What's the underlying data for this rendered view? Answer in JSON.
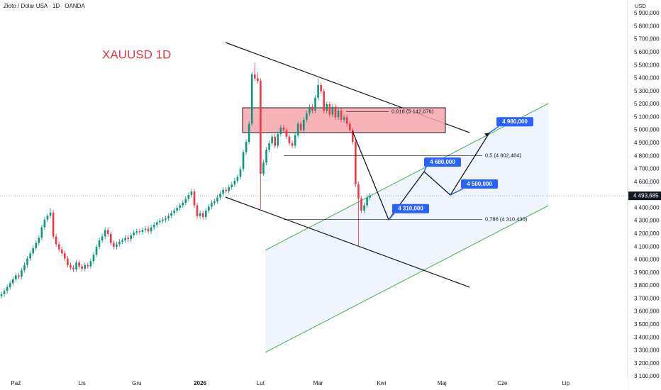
{
  "chart_data": {
    "type": "candlestick",
    "header": "Złoto / Dolar USA · 1D · OANDA",
    "title": "XAUUSD 1D",
    "currency": "USD",
    "up_color": "#089981",
    "down_color": "#f23645",
    "xlim": [
      -0.5,
      217.5
    ],
    "xticks": [
      {
        "value": 5,
        "label": "Paź"
      },
      {
        "value": 28,
        "label": "Lis"
      },
      {
        "value": 47,
        "label": "Gru"
      },
      {
        "value": 69,
        "label": "2026"
      },
      {
        "value": 90,
        "label": "Lut"
      },
      {
        "value": 110,
        "label": "Mar"
      },
      {
        "value": 132,
        "label": "Kwi"
      },
      {
        "value": 153,
        "label": "Maj"
      },
      {
        "value": 174,
        "label": "Cze"
      },
      {
        "value": 196,
        "label": "Lip"
      }
    ],
    "ylim": [
      3100,
      5900
    ],
    "yticks": [
      {
        "value": 3100,
        "label": "3 100,000"
      },
      {
        "value": 3200,
        "label": "3 200,000"
      },
      {
        "value": 3300,
        "label": "3 300,000"
      },
      {
        "value": 3400,
        "label": "3 400,000"
      },
      {
        "value": 3500,
        "label": "3 500,000"
      },
      {
        "value": 3600,
        "label": "3 600,000"
      },
      {
        "value": 3700,
        "label": "3 700,000"
      },
      {
        "value": 3800,
        "label": "3 800,000"
      },
      {
        "value": 3900,
        "label": "3 900,000"
      },
      {
        "value": 4000,
        "label": "4 000,000"
      },
      {
        "value": 4100,
        "label": "4 100,000"
      },
      {
        "value": 4200,
        "label": "4 200,000"
      },
      {
        "value": 4300,
        "label": "4 300,000"
      },
      {
        "value": 4400,
        "label": "4 400,000"
      },
      {
        "value": 4500,
        "label": "4 500,000"
      },
      {
        "value": 4600,
        "label": "4 600,000"
      },
      {
        "value": 4700,
        "label": "4 700,000"
      },
      {
        "value": 4800,
        "label": "4 800,000"
      },
      {
        "value": 4900,
        "label": "4 900,000"
      },
      {
        "value": 5000,
        "label": "5 000,000"
      },
      {
        "value": 5100,
        "label": "5 100,000"
      },
      {
        "value": 5200,
        "label": "5 200,000"
      },
      {
        "value": 5300,
        "label": "5 300,000"
      },
      {
        "value": 5400,
        "label": "5 400,000"
      },
      {
        "value": 5500,
        "label": "5 500,000"
      },
      {
        "value": 5600,
        "label": "5 600,000"
      },
      {
        "value": 5700,
        "label": "5 700,000"
      },
      {
        "value": 5800,
        "label": "5 800,000"
      },
      {
        "value": 5900,
        "label": "5 900,000"
      }
    ],
    "open": [
      3720,
      3735,
      3760,
      3790,
      3820,
      3850,
      3880,
      3870,
      3920,
      3960,
      4010,
      4050,
      4090,
      4130,
      4170,
      4250,
      4310,
      4340,
      4364,
      4180,
      4120,
      4080,
      4050,
      4010,
      3960,
      3940,
      3926,
      3980,
      3950,
      3930,
      3960,
      3950,
      3990,
      4040,
      4100,
      4150,
      4180,
      4230,
      4200,
      4130,
      4100,
      4120,
      4140,
      4150,
      4170,
      4160,
      4190,
      4210,
      4220,
      4215,
      4230,
      4240,
      4220,
      4250,
      4270,
      4290,
      4300,
      4310,
      4320,
      4340,
      4360,
      4380,
      4400,
      4420,
      4440,
      4470,
      4500,
      4527,
      4420,
      4336,
      4360,
      4330,
      4380,
      4410,
      4440,
      4450,
      4480,
      4510,
      4540,
      4530,
      4560,
      4580,
      4610,
      4640,
      4700,
      4830,
      4910,
      5050,
      5430,
      5400,
      5380,
      4664,
      4750,
      4850,
      4900,
      4950,
      4880,
      4970,
      5020,
      5000,
      4950,
      4900,
      4880,
      4960,
      5050,
      5000,
      5080,
      5130,
      5180,
      5150,
      5250,
      5348,
      5300,
      5150,
      5200,
      5120,
      5180,
      5100,
      5150,
      5080,
      5100,
      5050,
      5000,
      4910,
      4583,
      4473,
      4380,
      4420,
      4480
    ],
    "high": [
      3755,
      3780,
      3810,
      3840,
      3870,
      3900,
      3900,
      3940,
      3980,
      4030,
      4070,
      4110,
      4150,
      4190,
      4270,
      4330,
      4360,
      4400,
      4384,
      4200,
      4140,
      4100,
      4070,
      4030,
      3980,
      3960,
      4000,
      4000,
      3970,
      3980,
      3980,
      4010,
      4060,
      4120,
      4170,
      4200,
      4250,
      4250,
      4220,
      4150,
      4140,
      4160,
      4170,
      4190,
      4190,
      4210,
      4230,
      4240,
      4240,
      4250,
      4260,
      4260,
      4270,
      4290,
      4310,
      4320,
      4330,
      4340,
      4360,
      4380,
      4400,
      4420,
      4440,
      4460,
      4490,
      4520,
      4547,
      4547,
      4440,
      4380,
      4380,
      4400,
      4430,
      4460,
      4470,
      4500,
      4530,
      4560,
      4560,
      4580,
      4600,
      4630,
      4660,
      4720,
      4850,
      4930,
      5070,
      5450,
      5523,
      5450,
      5400,
      4770,
      4870,
      4920,
      4970,
      4970,
      4990,
      5040,
      5040,
      5020,
      4970,
      4920,
      4980,
      5070,
      5070,
      5100,
      5150,
      5200,
      5200,
      5270,
      5400,
      5368,
      5320,
      5220,
      5220,
      5200,
      5200,
      5170,
      5170,
      5120,
      5120,
      5070,
      5020,
      4930,
      4603,
      4493,
      4440,
      4500,
      4514
    ],
    "low": [
      3700,
      3715,
      3740,
      3770,
      3800,
      3830,
      3850,
      3850,
      3900,
      3940,
      3990,
      4030,
      4070,
      4110,
      4150,
      4230,
      4290,
      4320,
      4160,
      4100,
      4060,
      4030,
      3990,
      3940,
      3920,
      3906,
      3906,
      3930,
      3910,
      3910,
      3930,
      3930,
      3970,
      4020,
      4080,
      4130,
      4160,
      4180,
      4110,
      4080,
      4080,
      4100,
      4120,
      4130,
      4140,
      4140,
      4170,
      4190,
      4195,
      4195,
      4210,
      4200,
      4200,
      4230,
      4250,
      4270,
      4280,
      4290,
      4300,
      4320,
      4340,
      4360,
      4380,
      4400,
      4420,
      4450,
      4480,
      4400,
      4316,
      4316,
      4310,
      4310,
      4360,
      4390,
      4420,
      4430,
      4460,
      4490,
      4510,
      4510,
      4540,
      4560,
      4590,
      4620,
      4680,
      4810,
      4890,
      5030,
      5380,
      5360,
      4391,
      4644,
      4730,
      4830,
      4880,
      4860,
      4860,
      4950,
      4980,
      4930,
      4880,
      4860,
      4860,
      4940,
      4980,
      4980,
      5060,
      5110,
      5130,
      5130,
      5230,
      5280,
      5130,
      5130,
      5100,
      5100,
      5080,
      5080,
      5060,
      5060,
      5030,
      4980,
      4890,
      4563,
      4100,
      4360,
      4360,
      4400,
      4460
    ],
    "close": [
      3735,
      3760,
      3790,
      3820,
      3850,
      3880,
      3870,
      3920,
      3960,
      4010,
      4050,
      4090,
      4130,
      4170,
      4250,
      4310,
      4340,
      4364,
      4180,
      4120,
      4080,
      4050,
      4010,
      3960,
      3940,
      3926,
      3980,
      3950,
      3930,
      3960,
      3950,
      3990,
      4040,
      4100,
      4150,
      4180,
      4230,
      4200,
      4130,
      4100,
      4120,
      4140,
      4150,
      4170,
      4160,
      4190,
      4210,
      4220,
      4215,
      4230,
      4240,
      4220,
      4250,
      4270,
      4290,
      4300,
      4310,
      4320,
      4340,
      4360,
      4380,
      4400,
      4420,
      4440,
      4470,
      4500,
      4527,
      4420,
      4336,
      4360,
      4330,
      4380,
      4410,
      4440,
      4450,
      4480,
      4510,
      4540,
      4530,
      4560,
      4580,
      4610,
      4640,
      4700,
      4830,
      4910,
      5050,
      5430,
      5400,
      5380,
      4664,
      4750,
      4850,
      4900,
      4950,
      4880,
      4970,
      5020,
      5000,
      4950,
      4900,
      4880,
      4960,
      5050,
      5000,
      5080,
      5130,
      5180,
      5150,
      5250,
      5348,
      5300,
      5150,
      5200,
      5120,
      5180,
      5100,
      5150,
      5080,
      5100,
      5050,
      5000,
      4910,
      4583,
      4473,
      4380,
      4420,
      4480,
      4494
    ],
    "last_price": {
      "value": 4493.685,
      "label": "4 493,685"
    },
    "fib_levels": [
      {
        "value": 5142.676,
        "label": "0,618 (5 142,676)"
      },
      {
        "value": 4802.484,
        "label": "0,5 (4 802,484)"
      },
      {
        "value": 4310.43,
        "label": "0,786 (4 310,430)"
      }
    ],
    "targets": [
      {
        "value": 4310,
        "label": "4 310,000"
      },
      {
        "value": 4680,
        "label": "4 680,000"
      },
      {
        "value": 4500,
        "label": "4 500,000"
      },
      {
        "value": 4980,
        "label": "4 980,000"
      }
    ]
  }
}
